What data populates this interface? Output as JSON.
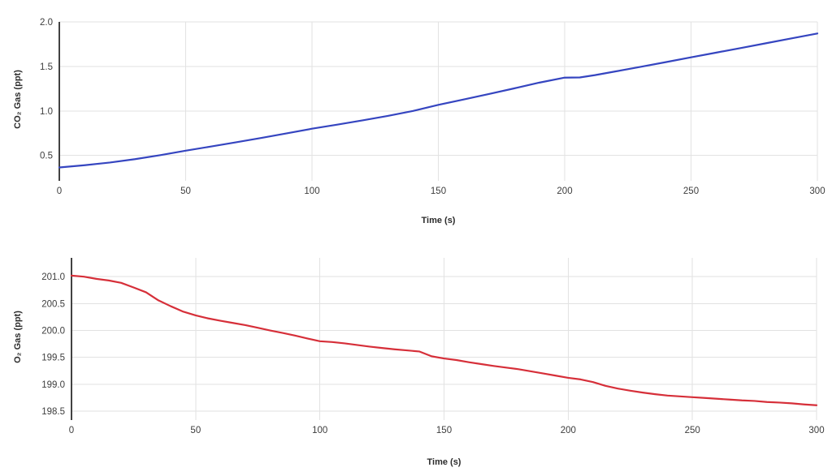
{
  "page": {
    "background": "#ffffff"
  },
  "chart_data": [
    {
      "id": "co2",
      "type": "line",
      "title": "",
      "xlabel": "Time (s)",
      "ylabel": "CO₂ Gas (ppt)",
      "line_color": "#3545c0",
      "grid": true,
      "legend": "none",
      "xlim": [
        0,
        300
      ],
      "ylim": [
        0.26,
        2.0
      ],
      "x_ticks": [
        0,
        50,
        100,
        150,
        200,
        250,
        300
      ],
      "x_tick_labels": [
        "0",
        "50",
        "100",
        "150",
        "200",
        "250",
        "300"
      ],
      "y_ticks": [
        0.5,
        1.0,
        1.5,
        2.0
      ],
      "y_tick_labels": [
        "0.5",
        "1.0",
        "1.5",
        "2.0"
      ],
      "points": [
        [
          0,
          0.365
        ],
        [
          10,
          0.39
        ],
        [
          20,
          0.42
        ],
        [
          30,
          0.458
        ],
        [
          40,
          0.503
        ],
        [
          50,
          0.553
        ],
        [
          60,
          0.6
        ],
        [
          70,
          0.648
        ],
        [
          80,
          0.697
        ],
        [
          90,
          0.748
        ],
        [
          100,
          0.8
        ],
        [
          110,
          0.846
        ],
        [
          120,
          0.894
        ],
        [
          130,
          0.944
        ],
        [
          140,
          1.0
        ],
        [
          150,
          1.068
        ],
        [
          160,
          1.128
        ],
        [
          170,
          1.19
        ],
        [
          180,
          1.253
        ],
        [
          190,
          1.318
        ],
        [
          200,
          1.374
        ],
        [
          206,
          1.376
        ],
        [
          212,
          1.402
        ],
        [
          220,
          1.443
        ],
        [
          230,
          1.495
        ],
        [
          240,
          1.548
        ],
        [
          250,
          1.602
        ],
        [
          260,
          1.655
        ],
        [
          270,
          1.708
        ],
        [
          280,
          1.762
        ],
        [
          290,
          1.816
        ],
        [
          300,
          1.87
        ]
      ]
    },
    {
      "id": "o2",
      "type": "line",
      "title": "",
      "xlabel": "Time (s)",
      "ylabel": "O₂ Gas (ppt)",
      "line_color": "#d62f39",
      "grid": true,
      "legend": "none",
      "xlim": [
        0,
        300
      ],
      "ylim": [
        198.41,
        201.35
      ],
      "x_ticks": [
        0,
        50,
        100,
        150,
        200,
        250,
        300
      ],
      "x_tick_labels": [
        "0",
        "50",
        "100",
        "150",
        "200",
        "250",
        "300"
      ],
      "y_ticks": [
        198.5,
        199.0,
        199.5,
        200.0,
        200.5,
        201.0
      ],
      "y_tick_labels": [
        "198.5",
        "199.0",
        "199.5",
        "200.0",
        "200.5",
        "201.0"
      ],
      "points": [
        [
          0,
          201.02
        ],
        [
          5,
          201.0
        ],
        [
          10,
          200.96
        ],
        [
          15,
          200.93
        ],
        [
          20,
          200.885
        ],
        [
          25,
          200.8
        ],
        [
          30,
          200.71
        ],
        [
          35,
          200.56
        ],
        [
          40,
          200.45
        ],
        [
          45,
          200.35
        ],
        [
          50,
          200.28
        ],
        [
          55,
          200.225
        ],
        [
          60,
          200.18
        ],
        [
          65,
          200.14
        ],
        [
          70,
          200.1
        ],
        [
          75,
          200.05
        ],
        [
          80,
          200.0
        ],
        [
          85,
          199.955
        ],
        [
          90,
          199.905
        ],
        [
          95,
          199.85
        ],
        [
          100,
          199.8
        ],
        [
          105,
          199.785
        ],
        [
          110,
          199.76
        ],
        [
          115,
          199.73
        ],
        [
          120,
          199.7
        ],
        [
          125,
          199.675
        ],
        [
          130,
          199.65
        ],
        [
          135,
          199.63
        ],
        [
          140,
          199.61
        ],
        [
          145,
          199.52
        ],
        [
          150,
          199.48
        ],
        [
          155,
          199.45
        ],
        [
          160,
          199.41
        ],
        [
          165,
          199.375
        ],
        [
          170,
          199.34
        ],
        [
          175,
          199.31
        ],
        [
          180,
          199.28
        ],
        [
          185,
          199.24
        ],
        [
          190,
          199.2
        ],
        [
          195,
          199.16
        ],
        [
          200,
          199.12
        ],
        [
          205,
          199.09
        ],
        [
          210,
          199.04
        ],
        [
          215,
          198.97
        ],
        [
          220,
          198.92
        ],
        [
          225,
          198.88
        ],
        [
          230,
          198.845
        ],
        [
          235,
          198.815
        ],
        [
          240,
          198.79
        ],
        [
          245,
          198.775
        ],
        [
          250,
          198.76
        ],
        [
          255,
          198.745
        ],
        [
          260,
          198.73
        ],
        [
          265,
          198.715
        ],
        [
          270,
          198.7
        ],
        [
          275,
          198.69
        ],
        [
          280,
          198.67
        ],
        [
          285,
          198.66
        ],
        [
          290,
          198.645
        ],
        [
          295,
          198.625
        ],
        [
          300,
          198.61
        ]
      ]
    }
  ]
}
